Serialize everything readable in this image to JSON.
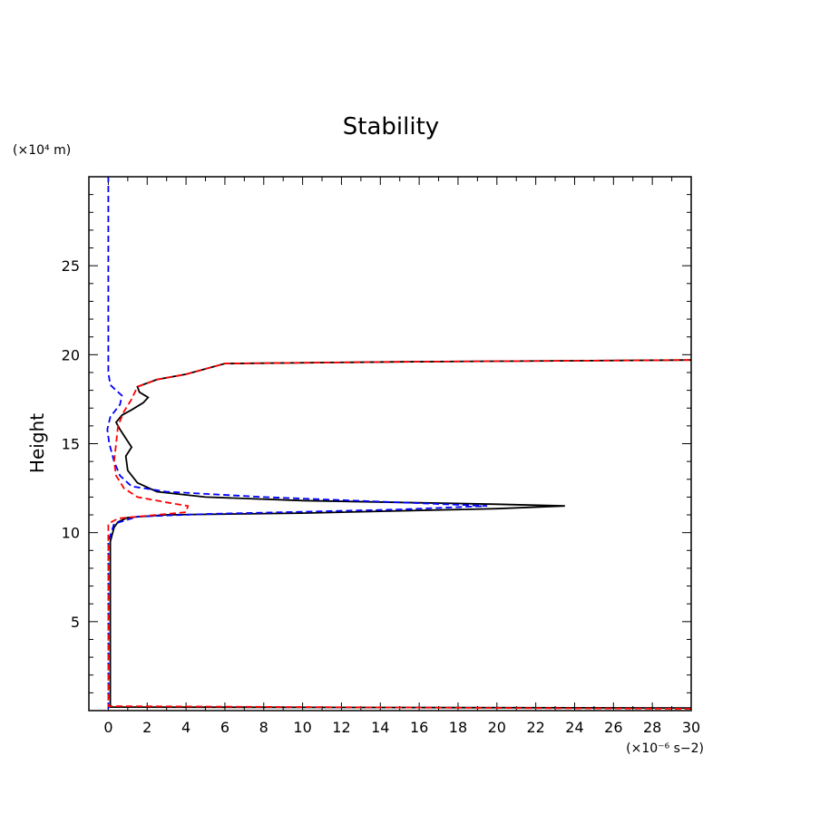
{
  "chart_data": {
    "type": "line",
    "title": "Stability",
    "xlabel": "(×10⁻⁶ s−2)",
    "ylabel": "Height",
    "yunit": "(×10⁴ m)",
    "xlim": [
      -1,
      30
    ],
    "ylim": [
      0,
      30
    ],
    "xticks": [
      0,
      2,
      4,
      6,
      8,
      10,
      12,
      14,
      16,
      18,
      20,
      22,
      24,
      26,
      28,
      30
    ],
    "yticks": [
      5,
      10,
      15,
      20,
      25
    ],
    "grid": false,
    "series": [
      {
        "name": "black-solid",
        "color": "#000000",
        "dash": "",
        "points": [
          [
            30,
            0.15
          ],
          [
            0.1,
            0.2
          ],
          [
            0.1,
            9.5
          ],
          [
            0.3,
            10.3
          ],
          [
            0.5,
            10.6
          ],
          [
            1,
            10.85
          ],
          [
            3,
            11.0
          ],
          [
            10,
            11.1
          ],
          [
            20,
            11.35
          ],
          [
            23.5,
            11.5
          ],
          [
            20,
            11.6
          ],
          [
            10,
            11.8
          ],
          [
            5,
            12.0
          ],
          [
            2.5,
            12.3
          ],
          [
            1.5,
            12.8
          ],
          [
            1.0,
            13.5
          ],
          [
            0.9,
            14.3
          ],
          [
            1.2,
            14.8
          ],
          [
            0.9,
            15.3
          ],
          [
            0.6,
            15.8
          ],
          [
            0.4,
            16.2
          ],
          [
            0.7,
            16.6
          ],
          [
            1.2,
            16.9
          ],
          [
            1.8,
            17.3
          ],
          [
            2.05,
            17.6
          ],
          [
            1.6,
            17.9
          ],
          [
            1.5,
            18.2
          ],
          [
            2.5,
            18.6
          ],
          [
            4,
            18.9
          ],
          [
            5,
            19.2
          ],
          [
            6,
            19.5
          ],
          [
            15,
            19.6
          ],
          [
            30,
            19.7
          ]
        ]
      },
      {
        "name": "blue-dashed",
        "color": "#0000ff",
        "dash": "7,4",
        "points": [
          [
            0,
            0.1
          ],
          [
            0,
            9.5
          ],
          [
            0.3,
            10.5
          ],
          [
            1.5,
            10.9
          ],
          [
            5,
            11.05
          ],
          [
            15,
            11.3
          ],
          [
            19.5,
            11.5
          ],
          [
            15,
            11.7
          ],
          [
            8,
            12.0
          ],
          [
            3,
            12.3
          ],
          [
            1.2,
            12.6
          ],
          [
            0.6,
            13.2
          ],
          [
            0.3,
            14.0
          ],
          [
            0.05,
            15.0
          ],
          [
            -0.05,
            15.8
          ],
          [
            0.1,
            16.5
          ],
          [
            0.6,
            17.2
          ],
          [
            0.7,
            17.7
          ],
          [
            0.1,
            18.3
          ],
          [
            0,
            19
          ],
          [
            0,
            30
          ]
        ]
      },
      {
        "name": "red-dashed",
        "color": "#ff0000",
        "dash": "7,4",
        "points": [
          [
            30,
            0.1
          ],
          [
            0,
            0.25
          ],
          [
            0,
            9.5
          ],
          [
            0,
            10.5
          ],
          [
            0.5,
            10.8
          ],
          [
            2,
            10.95
          ],
          [
            4,
            11.15
          ],
          [
            4.1,
            11.5
          ],
          [
            3,
            11.7
          ],
          [
            1.5,
            12.0
          ],
          [
            0.8,
            12.5
          ],
          [
            0.4,
            13.2
          ],
          [
            0.3,
            14.0
          ],
          [
            0.4,
            15.0
          ],
          [
            0.5,
            16.0
          ],
          [
            0.8,
            16.8
          ],
          [
            1.2,
            17.5
          ],
          [
            1.5,
            18.2
          ],
          [
            2.5,
            18.6
          ],
          [
            4,
            18.9
          ],
          [
            5,
            19.2
          ],
          [
            6,
            19.5
          ],
          [
            15,
            19.6
          ],
          [
            30,
            19.7
          ]
        ]
      }
    ]
  }
}
